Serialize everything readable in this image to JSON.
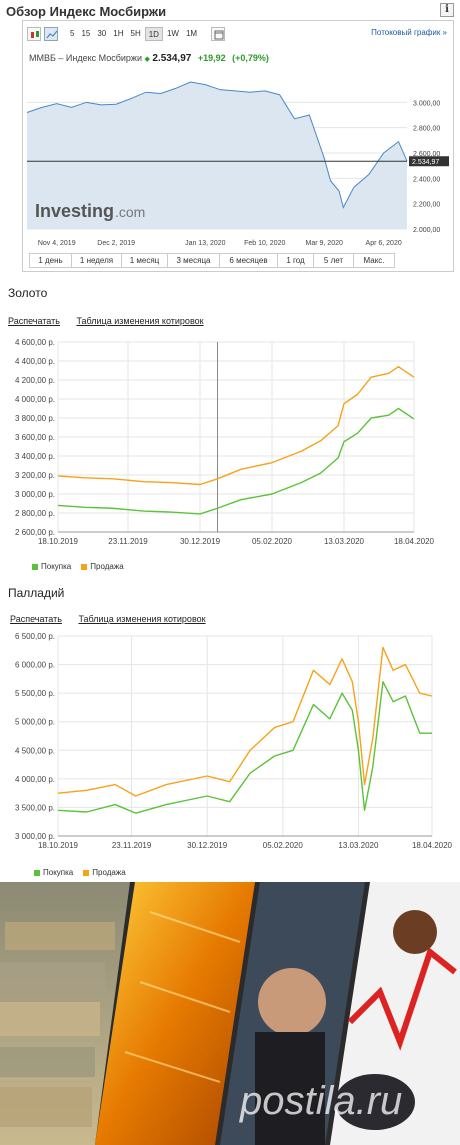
{
  "widget": {
    "title": "Обзор Индекс Мосбиржи",
    "info_icon": "i",
    "toolbar_intervals": [
      "5",
      "15",
      "30",
      "1H",
      "5H",
      "1D",
      "1W",
      "1M"
    ],
    "active_interval": "1D",
    "stream_link": "Потоковый график »",
    "instrument": "ММВБ – Индекс Мосбиржи",
    "last": "2.534,97",
    "change": "+19,92",
    "change_pct": "(+0,79%)",
    "logo_text": "Investing",
    "logo_suffix": ".com",
    "ranges": [
      "1 день",
      "1 неделя",
      "1 месяц",
      "3 месяца",
      "6 месяцев",
      "1 год",
      "5 лет",
      "Макс."
    ],
    "active_range": "3 месяца"
  },
  "gold": {
    "title": "Золото",
    "print_link": "Распечатать",
    "table_link": "Таблица изменения котировок",
    "legend_buy": "Покупка",
    "legend_sell": "Продажа"
  },
  "palladium": {
    "title": "Палладий",
    "print_link": "Распечатать",
    "table_link": "Таблица изменения котировок",
    "legend_buy": "Покупка",
    "legend_sell": "Продажа"
  },
  "banner": {
    "watermark": "postila.ru"
  },
  "colors": {
    "buy": "#5cc23a",
    "sell": "#f7a21b",
    "moex_line": "#4a87c7",
    "moex_fill": "#dbe6f1",
    "grid": "#e5e5e5"
  },
  "chart_data": [
    {
      "type": "area",
      "id": "moex",
      "x_ticks": [
        "Nov 4, 2019",
        "Dec 2, 2019",
        "Jan 13, 2020",
        "Feb 10, 2020",
        "Mar 9, 2020",
        "Apr 6, 2020"
      ],
      "y_ticks": [
        "3.000,00",
        "2.800,00",
        "2.600,00",
        "2.400,00",
        "2.200,00",
        "2.000,00"
      ],
      "ylim": [
        2000,
        3200
      ],
      "last_label": "2.534,97",
      "last_value": 2535,
      "x": [
        "2019-10-21",
        "2019-10-28",
        "2019-11-04",
        "2019-11-11",
        "2019-11-18",
        "2019-11-25",
        "2019-12-02",
        "2019-12-09",
        "2019-12-16",
        "2019-12-23",
        "2019-12-30",
        "2020-01-06",
        "2020-01-13",
        "2020-01-20",
        "2020-01-27",
        "2020-02-03",
        "2020-02-10",
        "2020-02-17",
        "2020-02-24",
        "2020-03-02",
        "2020-03-09",
        "2020-03-12",
        "2020-03-16",
        "2020-03-18",
        "2020-03-23",
        "2020-03-30",
        "2020-04-06",
        "2020-04-13",
        "2020-04-17"
      ],
      "values": [
        2920,
        2960,
        2990,
        2960,
        3000,
        2980,
        2985,
        3030,
        3080,
        3070,
        3110,
        3160,
        3140,
        3100,
        3090,
        3080,
        3090,
        3060,
        2870,
        2900,
        2560,
        2380,
        2300,
        2170,
        2330,
        2430,
        2600,
        2690,
        2535
      ]
    },
    {
      "type": "line",
      "id": "gold",
      "x_ticks": [
        "18.10.2019",
        "23.11.2019",
        "30.12.2019",
        "05.02.2020",
        "13.03.2020",
        "18.04.2020"
      ],
      "y_ticks": [
        "4 600,00 р.",
        "4 400,00 р.",
        "4 200,00 р.",
        "4 000,00 р.",
        "3 800,00 р.",
        "3 600,00 р.",
        "3 400,00 р.",
        "3 200,00 р.",
        "3 000,00 р.",
        "2 800,00 р.",
        "2 600,00 р."
      ],
      "ylim": [
        2600,
        4600
      ],
      "vline": "2020-01-08",
      "series": [
        {
          "name": "Покупка",
          "x": [
            "2019-10-18",
            "2019-11-01",
            "2019-11-15",
            "2019-12-01",
            "2019-12-15",
            "2019-12-30",
            "2020-01-08",
            "2020-01-20",
            "2020-02-05",
            "2020-02-20",
            "2020-03-01",
            "2020-03-10",
            "2020-03-13",
            "2020-03-20",
            "2020-03-27",
            "2020-04-05",
            "2020-04-10",
            "2020-04-18"
          ],
          "values": [
            2880,
            2860,
            2850,
            2820,
            2810,
            2790,
            2850,
            2940,
            3000,
            3120,
            3220,
            3380,
            3550,
            3640,
            3800,
            3830,
            3900,
            3790
          ]
        },
        {
          "name": "Продажа",
          "x": [
            "2019-10-18",
            "2019-11-01",
            "2019-11-15",
            "2019-12-01",
            "2019-12-15",
            "2019-12-30",
            "2020-01-08",
            "2020-01-20",
            "2020-02-05",
            "2020-02-20",
            "2020-03-01",
            "2020-03-10",
            "2020-03-13",
            "2020-03-20",
            "2020-03-27",
            "2020-04-05",
            "2020-04-10",
            "2020-04-18"
          ],
          "values": [
            3190,
            3170,
            3160,
            3130,
            3120,
            3100,
            3160,
            3260,
            3330,
            3450,
            3560,
            3720,
            3950,
            4050,
            4230,
            4270,
            4340,
            4230
          ]
        }
      ]
    },
    {
      "type": "line",
      "id": "palladium",
      "x_ticks": [
        "18.10.2019",
        "23.11.2019",
        "30.12.2019",
        "05.02.2020",
        "13.03.2020",
        "18.04.2020"
      ],
      "y_ticks": [
        "6 500,00 р.",
        "6 000,00 р.",
        "5 500,00 р.",
        "5 000,00 р.",
        "4 500,00 р.",
        "4 000,00 р.",
        "3 500,00 р.",
        "3 000,00 р."
      ],
      "ylim": [
        3000,
        6500
      ],
      "series": [
        {
          "name": "Покупка",
          "x": [
            "2019-10-18",
            "2019-11-01",
            "2019-11-15",
            "2019-11-25",
            "2019-12-10",
            "2019-12-30",
            "2020-01-10",
            "2020-01-20",
            "2020-02-01",
            "2020-02-10",
            "2020-02-20",
            "2020-02-28",
            "2020-03-05",
            "2020-03-10",
            "2020-03-13",
            "2020-03-16",
            "2020-03-20",
            "2020-03-25",
            "2020-03-30",
            "2020-04-05",
            "2020-04-12",
            "2020-04-18"
          ],
          "values": [
            3450,
            3420,
            3550,
            3400,
            3550,
            3700,
            3600,
            4100,
            4400,
            4500,
            5300,
            5050,
            5500,
            5200,
            4500,
            3450,
            4200,
            5700,
            5350,
            5450,
            4800,
            4800
          ]
        },
        {
          "name": "Продажа",
          "x": [
            "2019-10-18",
            "2019-11-01",
            "2019-11-15",
            "2019-11-25",
            "2019-12-10",
            "2019-12-30",
            "2020-01-10",
            "2020-01-20",
            "2020-02-01",
            "2020-02-10",
            "2020-02-20",
            "2020-02-28",
            "2020-03-05",
            "2020-03-10",
            "2020-03-13",
            "2020-03-16",
            "2020-03-20",
            "2020-03-25",
            "2020-03-30",
            "2020-04-05",
            "2020-04-12",
            "2020-04-18"
          ],
          "values": [
            3750,
            3800,
            3900,
            3700,
            3900,
            4050,
            3950,
            4500,
            4900,
            5000,
            5900,
            5650,
            6100,
            5700,
            5000,
            3900,
            4700,
            6300,
            5900,
            6000,
            5500,
            5450
          ]
        }
      ]
    }
  ]
}
